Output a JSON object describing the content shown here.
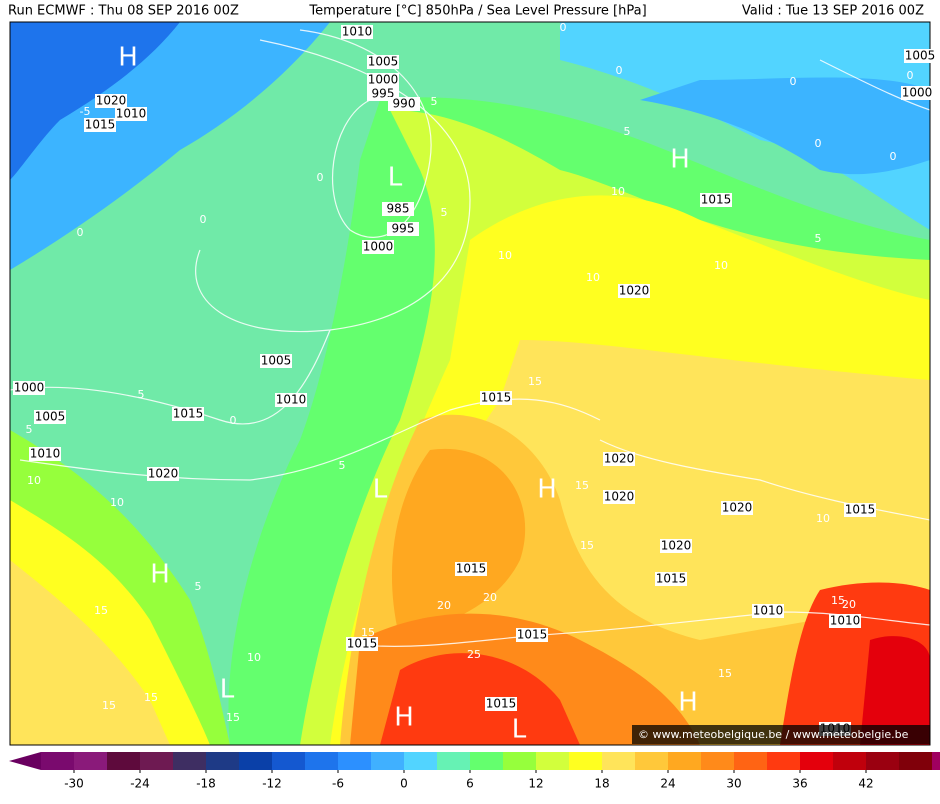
{
  "header": {
    "left": "Run ECMWF : Thu 08 SEP 2016 00Z",
    "center": "Temperature [°C] 850hPa / Sea Level Pressure [hPa]",
    "right": "Valid : Tue 13 SEP 2016 00Z"
  },
  "map": {
    "isobar_labels": [
      1010,
      1005,
      1000,
      995,
      990,
      1020,
      1010,
      1015,
      985,
      995,
      1000,
      1005,
      1010,
      1015,
      1000,
      1005,
      1010,
      1020,
      1015,
      1020,
      1015,
      1020,
      1020,
      1020,
      1015,
      1020,
      1015,
      1015,
      1015,
      1015,
      1015,
      1010,
      1010,
      1005,
      1000,
      1010
    ],
    "temperature_labels": [
      -5,
      0,
      0,
      0,
      0,
      0,
      0,
      0,
      0,
      0,
      0,
      5,
      5,
      5,
      5,
      5,
      5,
      5,
      5,
      10,
      10,
      10,
      10,
      10,
      10,
      10,
      10,
      15,
      15,
      15,
      15,
      15,
      15,
      15,
      15,
      15,
      15,
      20,
      20,
      20,
      25
    ],
    "pressure_centers": [
      "H",
      "L",
      "H",
      "L",
      "H",
      "H",
      "L",
      "H",
      "H",
      "L"
    ]
  },
  "watermark": "© www.meteobelgique.be / www.meteobelgie.be",
  "colorbar": {
    "colors": [
      "#6a0060",
      "#7a0a6e",
      "#8a1a7a",
      "#5e0a3c",
      "#6e1a52",
      "#3e2e62",
      "#1e3a86",
      "#0a40a8",
      "#1458d0",
      "#1e74ec",
      "#2c90ff",
      "#40b0ff",
      "#52d4ff",
      "#66f2b4",
      "#64ff6e",
      "#96ff3c",
      "#d2ff3c",
      "#ffff20",
      "#ffe45a",
      "#ffc83a",
      "#ffa820",
      "#ff8a1a",
      "#ff6414",
      "#ff3a10",
      "#e4000c",
      "#c0000c",
      "#9a0010",
      "#80000a",
      "#a00060",
      "#e000c8"
    ],
    "ticks": [
      -30,
      -24,
      -18,
      -12,
      -6,
      0,
      6,
      12,
      18,
      24,
      30,
      36,
      42
    ]
  }
}
